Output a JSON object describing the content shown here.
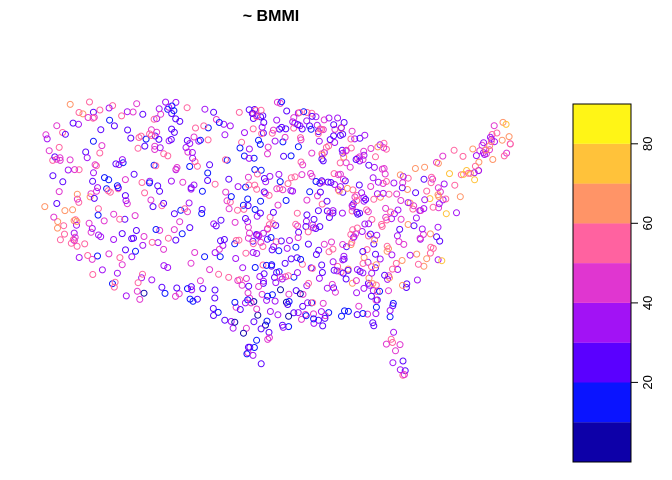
{
  "chart_data": {
    "type": "scatter",
    "title": "~ BMMI",
    "xlabel": "",
    "ylabel": "",
    "grid": false,
    "legend": "right",
    "x_range": [
      -125,
      -66
    ],
    "y_range": [
      24,
      50
    ],
    "color_scale": {
      "range": [
        0,
        90
      ],
      "breaks": [
        0,
        10,
        20,
        30,
        40,
        50,
        60,
        70,
        80,
        90
      ],
      "colors": [
        "#0d00a8",
        "#0a14ff",
        "#5a00ff",
        "#a212f5",
        "#e036d0",
        "#ff62a0",
        "#ff9467",
        "#ffc23a",
        "#fff516"
      ],
      "tick_labels": [
        "20",
        "40",
        "60",
        "80"
      ],
      "tick_values": [
        20,
        40,
        60,
        80
      ]
    },
    "points": []
  }
}
